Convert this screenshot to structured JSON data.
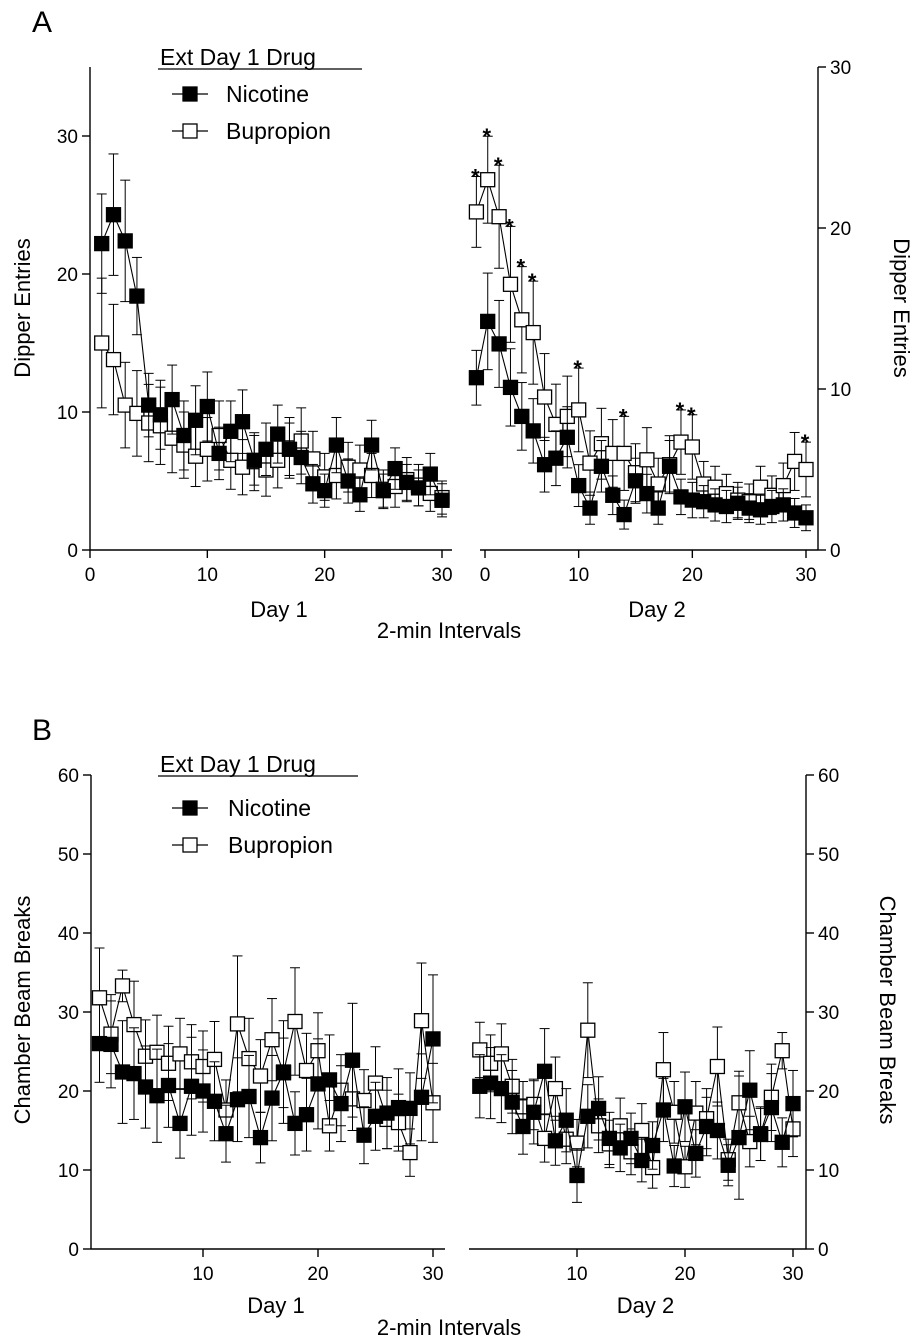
{
  "chart_data": [
    {
      "type": "line",
      "panel_label": "A",
      "legend_title": "Ext Day 1 Drug",
      "xlabel": "2-min Intervals",
      "ylabel": "Dipper Entries",
      "ylim": [
        0,
        30
      ],
      "yticks": [
        0,
        10,
        20,
        30
      ],
      "left_ylim": [
        0,
        35
      ],
      "left_yticks": [
        0,
        10,
        20,
        30
      ],
      "xticks": [
        0,
        10,
        20,
        30
      ],
      "grid": false,
      "legend": "top-left",
      "days": [
        {
          "label": "Day 1",
          "x": [
            1,
            2,
            3,
            4,
            5,
            6,
            7,
            8,
            9,
            10,
            11,
            12,
            13,
            14,
            15,
            16,
            17,
            18,
            19,
            20,
            21,
            22,
            23,
            24,
            25,
            26,
            27,
            28,
            29,
            30
          ],
          "series": [
            {
              "name": "Nicotine",
              "marker": "filled-square",
              "values": [
                22.2,
                24.3,
                22.4,
                18.4,
                10.5,
                9.8,
                10.9,
                8.3,
                9.4,
                10.4,
                7.0,
                8.6,
                9.3,
                6.5,
                7.3,
                8.4,
                7.3,
                6.7,
                4.8,
                4.3,
                7.6,
                5.0,
                4.0,
                7.6,
                4.3,
                5.9,
                4.9,
                4.5,
                5.5,
                3.6
              ],
              "errors": [
                3.6,
                4.4,
                4.4,
                2.8,
                2.3,
                2.5,
                2.5,
                2.5,
                2.5,
                2.5,
                1.9,
                2.2,
                2.3,
                1.8,
                1.9,
                2.1,
                1.9,
                1.9,
                1.4,
                1.2,
                2.0,
                1.6,
                1.2,
                1.8,
                1.2,
                1.5,
                1.3,
                1.3,
                1.5,
                1.2
              ]
            },
            {
              "name": "Bupropion",
              "marker": "open-square",
              "values": [
                15.0,
                13.8,
                10.5,
                9.9,
                9.2,
                9.0,
                8.1,
                7.6,
                6.8,
                7.3,
                8.3,
                6.5,
                6.0,
                6.4,
                5.8,
                6.5,
                7.4,
                7.9,
                6.6,
                5.3,
                5.4,
                6.0,
                5.8,
                5.4,
                4.4,
                4.6,
                5.1,
                4.7,
                4.1,
                3.8
              ],
              "errors": [
                4.7,
                4.0,
                3.1,
                3.1,
                2.8,
                2.8,
                2.5,
                2.4,
                2.2,
                2.3,
                2.5,
                2.1,
                2.0,
                2.1,
                1.9,
                2.0,
                2.2,
                2.4,
                2.0,
                1.7,
                1.7,
                1.8,
                1.8,
                1.6,
                1.4,
                1.5,
                1.6,
                1.5,
                1.3,
                1.2
              ]
            }
          ]
        },
        {
          "label": "Day 2",
          "x": [
            1,
            2,
            3,
            4,
            5,
            6,
            7,
            8,
            9,
            10,
            11,
            12,
            13,
            14,
            15,
            16,
            17,
            18,
            19,
            20,
            21,
            22,
            23,
            24,
            25,
            26,
            27,
            28,
            29,
            30
          ],
          "series": [
            {
              "name": "Nicotine",
              "marker": "filled-square",
              "values": [
                10.7,
                14.2,
                12.8,
                10.1,
                8.3,
                7.4,
                5.3,
                5.7,
                7.0,
                4.0,
                2.6,
                5.2,
                3.4,
                2.2,
                4.3,
                3.5,
                2.6,
                5.2,
                3.3,
                3.1,
                3.0,
                2.8,
                2.7,
                2.9,
                2.6,
                2.5,
                2.7,
                2.8,
                2.3,
                2.0
              ],
              "errors": [
                1.7,
                3.0,
                2.7,
                2.4,
                2.1,
                2.0,
                1.7,
                1.7,
                1.9,
                1.3,
                1.0,
                1.6,
                1.2,
                0.9,
                1.4,
                1.2,
                1.0,
                1.6,
                1.1,
                1.1,
                1.0,
                1.0,
                1.0,
                1.0,
                0.9,
                0.9,
                1.0,
                1.0,
                0.9,
                0.8
              ]
            },
            {
              "name": "Bupropion",
              "marker": "open-square",
              "values": [
                21.0,
                23.0,
                20.7,
                16.5,
                14.3,
                13.5,
                9.5,
                7.8,
                8.3,
                8.7,
                5.4,
                6.6,
                6.0,
                6.0,
                4.8,
                5.6,
                4.1,
                5.3,
                6.7,
                6.4,
                4.1,
                3.9,
                3.5,
                3.1,
                3.0,
                3.9,
                3.4,
                4.0,
                5.5,
                5.0
              ],
              "errors": [
                2.2,
                2.7,
                3.2,
                3.6,
                3.3,
                3.2,
                2.7,
                2.5,
                2.5,
                2.6,
                2.0,
                2.2,
                2.1,
                2.3,
                1.8,
                2.0,
                1.6,
                1.8,
                2.0,
                2.0,
                1.4,
                1.3,
                1.2,
                1.1,
                1.1,
                1.3,
                1.2,
                1.4,
                1.8,
                1.7
              ]
            }
          ],
          "significant_x": [
            1,
            2,
            3,
            4,
            5,
            6,
            10,
            14,
            19,
            20,
            30
          ],
          "annotation": "*"
        }
      ]
    },
    {
      "type": "line",
      "panel_label": "B",
      "legend_title": "Ext Day 1 Drug",
      "xlabel": "2-min Intervals",
      "ylabel": "Chamber Beam Breaks",
      "ylim": [
        0,
        60
      ],
      "yticks": [
        0,
        10,
        20,
        30,
        40,
        50,
        60
      ],
      "xticks": [
        10,
        20,
        30
      ],
      "grid": false,
      "legend": "top-left",
      "days": [
        {
          "label": "Day 1",
          "x": [
            1,
            2,
            3,
            4,
            5,
            6,
            7,
            8,
            9,
            10,
            11,
            12,
            13,
            14,
            15,
            16,
            17,
            18,
            19,
            20,
            21,
            22,
            23,
            24,
            25,
            26,
            27,
            28,
            29,
            30
          ],
          "series": [
            {
              "name": "Nicotine",
              "marker": "filled-square",
              "values": [
                26.0,
                25.9,
                22.4,
                22.2,
                20.5,
                19.4,
                20.7,
                15.9,
                20.6,
                20.0,
                18.7,
                14.6,
                18.9,
                19.3,
                14.1,
                19.1,
                22.4,
                15.9,
                17.0,
                20.9,
                21.4,
                18.4,
                23.9,
                14.4,
                16.8,
                17.2,
                17.9,
                17.8,
                19.2,
                26.6
              ],
              "errors": [
                4.9,
                5.5,
                6.5,
                5.8,
                5.2,
                5.9,
                5.3,
                4.4,
                6.2,
                5.2,
                5.0,
                3.6,
                5.3,
                5.2,
                3.2,
                5.4,
                6.5,
                4.0,
                4.6,
                5.7,
                5.7,
                4.8,
                7.2,
                3.6,
                4.3,
                4.5,
                4.9,
                4.5,
                5.5,
                8.1
              ]
            },
            {
              "name": "Bupropion",
              "marker": "open-square",
              "values": [
                31.8,
                27.2,
                33.3,
                28.4,
                24.4,
                24.9,
                23.5,
                24.7,
                23.7,
                23.1,
                24.0,
                17.6,
                28.5,
                24.1,
                21.9,
                26.5,
                22.3,
                28.8,
                22.6,
                25.1,
                15.6,
                20.1,
                19.0,
                18.8,
                21.0,
                16.4,
                16.0,
                12.2,
                28.9,
                18.5
              ],
              "errors": [
                6.3,
                5.0,
                2.0,
                5.5,
                4.6,
                4.7,
                4.7,
                4.5,
                4.7,
                4.5,
                4.8,
                3.8,
                8.6,
                5.1,
                4.6,
                5.2,
                4.4,
                6.8,
                4.7,
                4.8,
                3.2,
                4.5,
                4.0,
                3.9,
                4.6,
                3.7,
                3.6,
                3.0,
                7.3,
                5.0
              ]
            }
          ]
        },
        {
          "label": "Day 2",
          "x": [
            1,
            2,
            3,
            4,
            5,
            6,
            7,
            8,
            9,
            10,
            11,
            12,
            13,
            14,
            15,
            16,
            17,
            18,
            19,
            20,
            21,
            22,
            23,
            24,
            25,
            26,
            27,
            28,
            29,
            30
          ],
          "series": [
            {
              "name": "Nicotine",
              "marker": "filled-square",
              "values": [
                20.6,
                21.0,
                20.3,
                18.6,
                15.5,
                17.3,
                22.5,
                13.7,
                16.3,
                9.3,
                16.8,
                17.8,
                14.0,
                12.8,
                14.0,
                11.2,
                13.1,
                17.6,
                10.5,
                18.0,
                12.1,
                15.5,
                15.0,
                10.6,
                14.1,
                20.1,
                14.5,
                17.9,
                13.5,
                18.4
              ],
              "errors": [
                4.0,
                4.5,
                4.3,
                4.0,
                3.5,
                4.0,
                5.4,
                3.1,
                4.0,
                3.4,
                4.0,
                4.0,
                3.3,
                3.0,
                3.2,
                2.7,
                3.0,
                4.0,
                2.6,
                4.4,
                3.0,
                3.7,
                3.6,
                2.6,
                7.8,
                5.0,
                3.3,
                4.3,
                3.1,
                4.2
              ]
            },
            {
              "name": "Bupropion",
              "marker": "open-square",
              "values": [
                25.2,
                23.5,
                24.7,
                20.6,
                18.0,
                18.3,
                14.0,
                20.3,
                13.9,
                13.4,
                27.7,
                15.6,
                13.3,
                15.6,
                12.3,
                15.0,
                10.3,
                22.7,
                17.3,
                10.4,
                17.2,
                16.5,
                23.1,
                11.3,
                18.5,
                13.6,
                14.6,
                19.2,
                25.1,
                15.2
              ],
              "errors": [
                3.5,
                3.6,
                3.8,
                3.4,
                3.2,
                3.2,
                3.0,
                4.0,
                3.1,
                3.0,
                6.0,
                3.4,
                3.0,
                3.5,
                2.9,
                3.4,
                2.6,
                4.7,
                3.9,
                2.6,
                4.0,
                3.8,
                5.0,
                2.6,
                4.0,
                3.2,
                3.4,
                4.2,
                2.3,
                3.5
              ]
            }
          ]
        }
      ]
    }
  ]
}
